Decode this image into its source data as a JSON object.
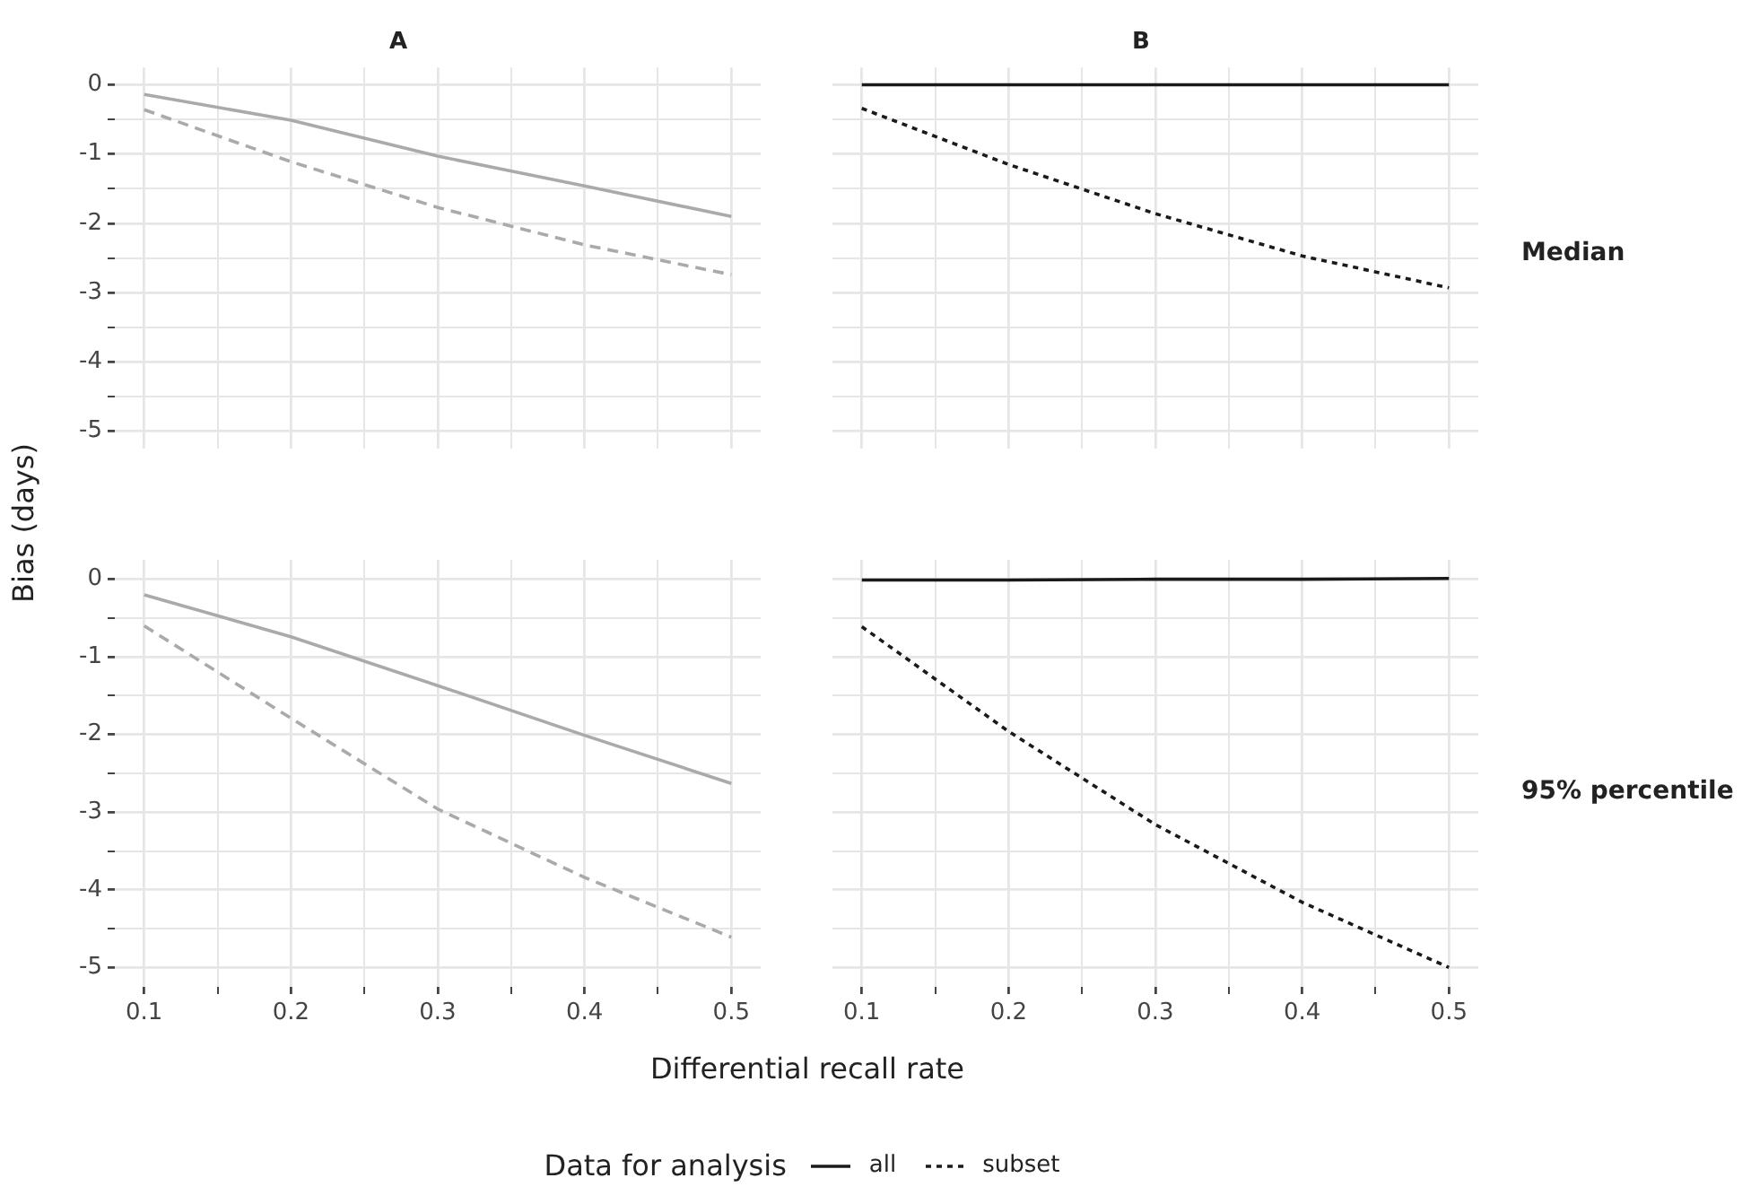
{
  "chart_data": [
    {
      "type": "line",
      "title": "A",
      "x": [
        0.1,
        0.2,
        0.3,
        0.4,
        0.5
      ],
      "ylabel": "Bias (days)",
      "xlim": [
        0.08,
        0.52
      ],
      "ylim": [
        -5.25,
        0.25
      ],
      "xticks": [
        0.1,
        {
          "value": 0.15,
          "label": null
        },
        0.2,
        {
          "value": 0.25,
          "label": null
        },
        0.3,
        {
          "value": 0.35,
          "label": null
        },
        0.4,
        {
          "value": 0.45,
          "label": null
        },
        0.5
      ],
      "yticks": [
        -5,
        {
          "value": -4.5,
          "label": null
        },
        -4,
        {
          "value": -3.5,
          "label": null
        },
        -3,
        {
          "value": -2.5,
          "label": null
        },
        -2,
        {
          "value": -1.5,
          "label": null
        },
        -1,
        {
          "value": -0.5,
          "label": null
        },
        0
      ],
      "tick_labels": "y",
      "grid": true,
      "legend": false,
      "marker": "none",
      "series": [
        {
          "color": "#aaaaaa",
          "line_style": "solid",
          "values": [
            -0.14,
            -0.51,
            -1.03,
            -1.46,
            -1.9
          ]
        },
        {
          "color": "#aaaaaa",
          "line_style": "dashed",
          "values": [
            -0.36,
            -1.11,
            -1.77,
            -2.31,
            -2.74
          ]
        }
      ]
    },
    {
      "type": "line",
      "title": "B",
      "annotations": [
        "Median"
      ],
      "x": [
        0.1,
        0.2,
        0.3,
        0.4,
        0.5
      ],
      "xlim": [
        0.08,
        0.52
      ],
      "ylim": [
        -5.25,
        0.25
      ],
      "xticks": [
        0.1,
        {
          "value": 0.15,
          "label": null
        },
        0.2,
        {
          "value": 0.25,
          "label": null
        },
        0.3,
        {
          "value": 0.35,
          "label": null
        },
        0.4,
        {
          "value": 0.45,
          "label": null
        },
        0.5
      ],
      "yticks": [
        -5,
        {
          "value": -4.5,
          "label": null
        },
        -4,
        {
          "value": -3.5,
          "label": null
        },
        -3,
        {
          "value": -2.5,
          "label": null
        },
        -2,
        {
          "value": -1.5,
          "label": null
        },
        -1,
        {
          "value": -0.5,
          "label": null
        },
        0
      ],
      "tick_labels": false,
      "grid": true,
      "legend": false,
      "marker": "none",
      "series": [
        {
          "color": "#1a1a1a",
          "line_style": "solid",
          "values": [
            0,
            0,
            0,
            0,
            0
          ]
        },
        {
          "color": "#1a1a1a",
          "line_style": "dotted",
          "values": [
            -0.34,
            -1.15,
            -1.86,
            -2.47,
            -2.93
          ]
        }
      ]
    },
    {
      "type": "line",
      "xlabel": "Differential recall rate",
      "x": [
        0.1,
        0.2,
        0.3,
        0.4,
        0.5
      ],
      "xlim": [
        0.08,
        0.52
      ],
      "ylim": [
        -5.25,
        0.25
      ],
      "xticks": [
        0.1,
        {
          "value": 0.15,
          "label": null
        },
        0.2,
        {
          "value": 0.25,
          "label": null
        },
        0.3,
        {
          "value": 0.35,
          "label": null
        },
        0.4,
        {
          "value": 0.45,
          "label": null
        },
        0.5
      ],
      "yticks": [
        -5,
        {
          "value": -4.5,
          "label": null
        },
        -4,
        {
          "value": -3.5,
          "label": null
        },
        -3,
        {
          "value": -2.5,
          "label": null
        },
        -2,
        {
          "value": -1.5,
          "label": null
        },
        -1,
        {
          "value": -0.5,
          "label": null
        },
        0
      ],
      "grid": true,
      "legend": false,
      "marker": "none",
      "series": [
        {
          "color": "#aaaaaa",
          "line_style": "solid",
          "values": [
            -0.2,
            -0.74,
            -1.37,
            -2.01,
            -2.63
          ]
        },
        {
          "color": "#aaaaaa",
          "line_style": "dashed",
          "values": [
            -0.6,
            -1.79,
            -2.96,
            -3.84,
            -4.61
          ]
        }
      ]
    },
    {
      "type": "line",
      "annotations": [
        "95% percentile"
      ],
      "legend_title": "Data for analysis",
      "x": [
        0.1,
        0.2,
        0.3,
        0.4,
        0.5
      ],
      "xlim": [
        0.08,
        0.52
      ],
      "ylim": [
        -5.25,
        0.25
      ],
      "xticks": [
        0.1,
        {
          "value": 0.15,
          "label": null
        },
        0.2,
        {
          "value": 0.25,
          "label": null
        },
        0.3,
        {
          "value": 0.35,
          "label": null
        },
        0.4,
        {
          "value": 0.45,
          "label": null
        },
        0.5
      ],
      "yticks": [
        -5,
        {
          "value": -4.5,
          "label": null
        },
        -4,
        {
          "value": -3.5,
          "label": null
        },
        -3,
        {
          "value": -2.5,
          "label": null
        },
        -2,
        {
          "value": -1.5,
          "label": null
        },
        -1,
        {
          "value": -0.5,
          "label": null
        },
        0
      ],
      "tick_labels": "x",
      "grid": true,
      "legend": "bottom",
      "marker": "none",
      "series": [
        {
          "name": "all",
          "color": "#1a1a1a",
          "line_style": "solid",
          "values": [
            -0.01,
            -0.01,
            0,
            0,
            0.01
          ]
        },
        {
          "name": "subset",
          "color": "#1a1a1a",
          "line_style": "dotted",
          "values": [
            -0.61,
            -1.96,
            -3.16,
            -4.16,
            -5.0
          ]
        }
      ]
    }
  ]
}
